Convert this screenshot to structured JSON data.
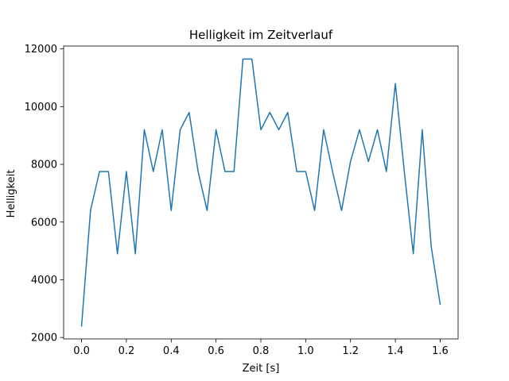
{
  "chart_data": {
    "type": "line",
    "title": "Helligkeit im Zeitverlauf",
    "xlabel": "Zeit [s]",
    "ylabel": "Helligkeit",
    "xlim": [
      -0.08,
      1.68
    ],
    "ylim": [
      1950,
      12100
    ],
    "xticks": [
      0.0,
      0.2,
      0.4,
      0.6,
      0.8,
      1.0,
      1.2,
      1.4,
      1.6
    ],
    "xtick_labels": [
      "0.0",
      "0.2",
      "0.4",
      "0.6",
      "0.8",
      "1.0",
      "1.2",
      "1.4",
      "1.6"
    ],
    "yticks": [
      2000,
      4000,
      6000,
      8000,
      10000,
      12000
    ],
    "ytick_labels": [
      "2000",
      "4000",
      "6000",
      "8000",
      "10000",
      "12000"
    ],
    "grid": false,
    "series": [
      {
        "color": "#1f77b4",
        "x": [
          0.0,
          0.04,
          0.08,
          0.12,
          0.16,
          0.2,
          0.24,
          0.28,
          0.32,
          0.36,
          0.4,
          0.44,
          0.48,
          0.52,
          0.56,
          0.6,
          0.64,
          0.68,
          0.72,
          0.76,
          0.8,
          0.84,
          0.88,
          0.92,
          0.96,
          1.0,
          1.04,
          1.08,
          1.12,
          1.16,
          1.2,
          1.24,
          1.28,
          1.32,
          1.36,
          1.4,
          1.44,
          1.48,
          1.52,
          1.56,
          1.6
        ],
        "y": [
          2400,
          6400,
          7750,
          7750,
          4900,
          7750,
          4900,
          9200,
          7750,
          9200,
          6400,
          9200,
          9800,
          7750,
          6400,
          9200,
          7750,
          7750,
          11650,
          11650,
          9200,
          9800,
          9200,
          9800,
          7750,
          7750,
          6400,
          9200,
          7750,
          6400,
          8100,
          9200,
          8100,
          9200,
          7750,
          10800,
          7750,
          4900,
          9200,
          5150,
          3150
        ]
      }
    ]
  }
}
